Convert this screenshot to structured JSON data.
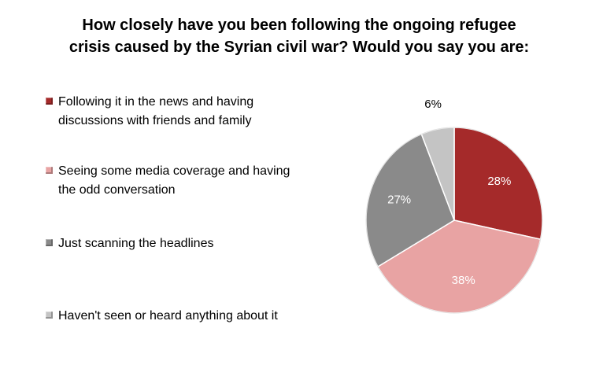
{
  "chart_data": {
    "type": "pie",
    "title_lines": [
      "How closely have you been following the ongoing refugee",
      "crisis caused by the Syrian civil war? Would you say you are:"
    ],
    "legend_position": "left",
    "slices": [
      {
        "label": "Following it in the news and having discussions with friends and family",
        "label_lines": [
          "Following it in the news and having",
          "discussions with friends and family"
        ],
        "value": 28,
        "value_label": "28%",
        "color": "#A52A2A",
        "label_color": "#ffffff"
      },
      {
        "label": "Seeing some media coverage and having the odd conversation",
        "label_lines": [
          "Seeing some media coverage and having",
          "the odd conversation"
        ],
        "value": 38,
        "value_label": "38%",
        "color": "#E8A3A3",
        "label_color": "#ffffff"
      },
      {
        "label": "Just scanning the headlines",
        "label_lines": [
          "Just scanning the headlines"
        ],
        "value": 27,
        "value_label": "27%",
        "color": "#8A8A8A",
        "label_color": "#ffffff"
      },
      {
        "label": "Haven't seen or heard anything about it",
        "label_lines": [
          "Haven't seen or heard anything about it"
        ],
        "value": 6,
        "value_label": "6%",
        "color": "#C4C4C4",
        "label_color": "#000000"
      }
    ]
  }
}
